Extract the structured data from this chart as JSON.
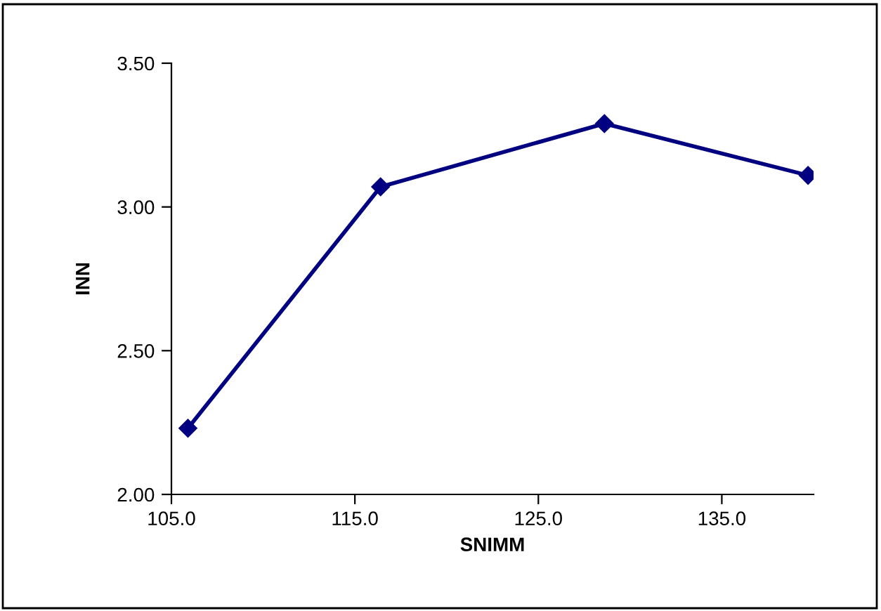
{
  "chart_data": {
    "type": "line",
    "xlabel": "SNIMM",
    "ylabel": "INN",
    "x": [
      105.9,
      116.4,
      128.6,
      139.7
    ],
    "series": [
      {
        "color": "#000080",
        "values": [
          2.23,
          3.07,
          3.29,
          3.11
        ]
      }
    ],
    "xlim": [
      105,
      140
    ],
    "xticks": [
      {
        "value": 105,
        "label": "105.0"
      },
      {
        "value": 115,
        "label": "115.0"
      },
      {
        "value": 125,
        "label": "125.0"
      },
      {
        "value": 135,
        "label": "135.0"
      }
    ],
    "ylim": [
      2.0,
      3.5
    ],
    "yticks": [
      {
        "value": 2.0,
        "label": "2.00"
      },
      {
        "value": 2.5,
        "label": "2.50"
      },
      {
        "value": 3.0,
        "label": "3.00"
      },
      {
        "value": 3.5,
        "label": "3.50"
      }
    ],
    "grid": false,
    "legend": false,
    "marker": "diamond",
    "line_style": "solid"
  }
}
